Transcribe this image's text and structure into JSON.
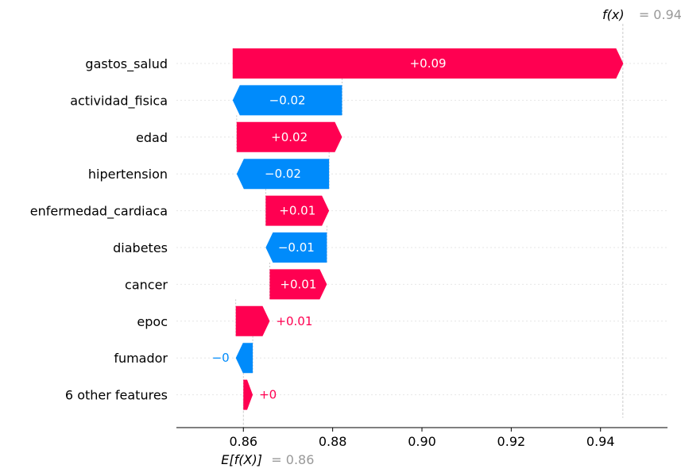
{
  "chart_data": {
    "type": "waterfall",
    "base_value": 0.86,
    "output_value": 0.945,
    "base_label": "E[f(X)]",
    "base_value_text": "= 0.86",
    "output_label": "f(x)",
    "output_value_text": "= 0.945",
    "xlim": [
      0.845,
      0.955
    ],
    "xticks": [
      0.86,
      0.88,
      0.9,
      0.92,
      0.94
    ],
    "xtick_labels": [
      "0.86",
      "0.88",
      "0.90",
      "0.92",
      "0.94"
    ],
    "colors": {
      "positive": "#ff0051",
      "negative": "#008bfb"
    },
    "features": [
      {
        "name": "gastos_salud",
        "contribution": 0.0875,
        "label": "+0.09"
      },
      {
        "name": "actividad_fisica",
        "contribution": -0.0245,
        "label": "−0.02"
      },
      {
        "name": "edad",
        "contribution": 0.0236,
        "label": "+0.02"
      },
      {
        "name": "hipertension",
        "contribution": -0.0207,
        "label": "−0.02"
      },
      {
        "name": "enfermedad_cardiaca",
        "contribution": 0.0142,
        "label": "+0.01"
      },
      {
        "name": "diabetes",
        "contribution": -0.0137,
        "label": "−0.01"
      },
      {
        "name": "cancer",
        "contribution": 0.0128,
        "label": "+0.01"
      },
      {
        "name": "epoc",
        "contribution": 0.0076,
        "label": "+0.01"
      },
      {
        "name": "fumador",
        "contribution": -0.0038,
        "label": "−0"
      },
      {
        "name": "6 other features",
        "contribution": 0.0021,
        "label": "+0"
      }
    ]
  }
}
